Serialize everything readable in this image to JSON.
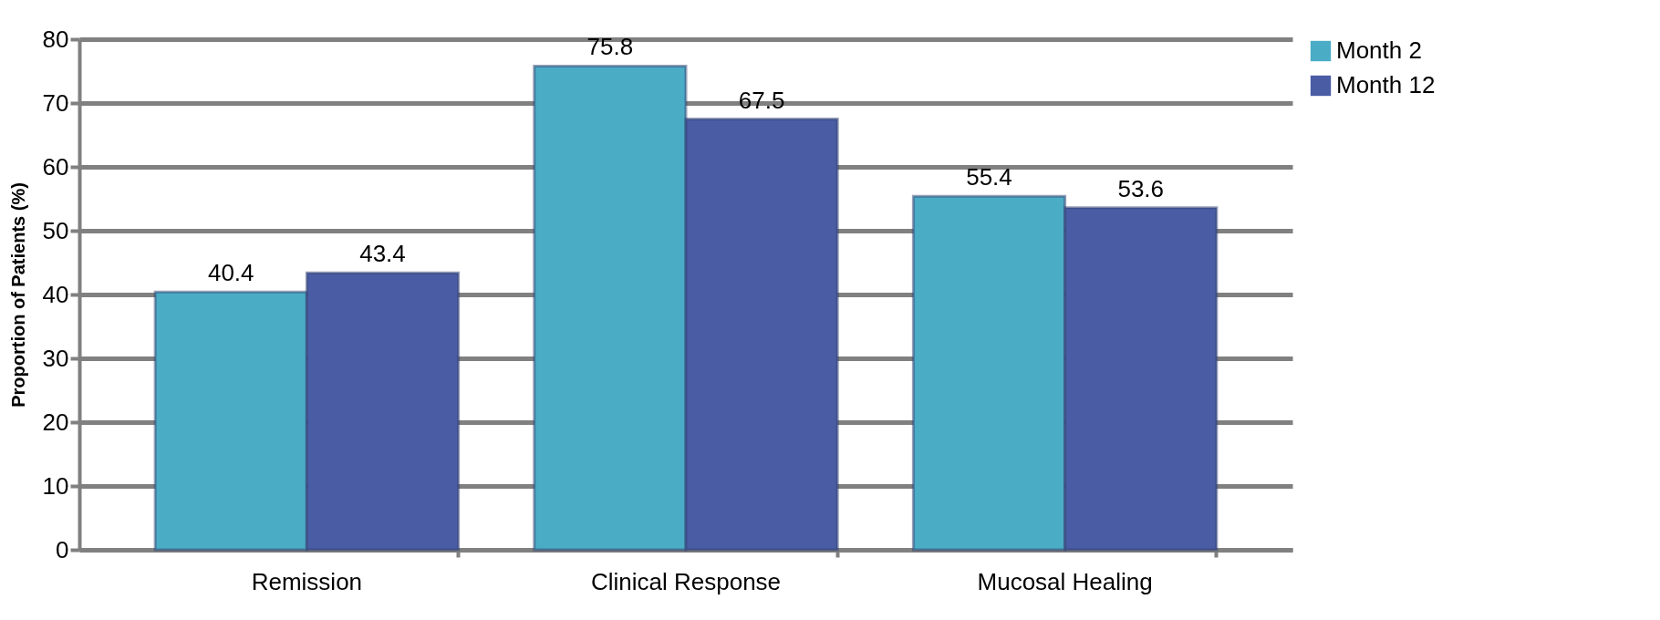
{
  "chart_data": {
    "type": "bar",
    "ylabel": "Proportion of Patients (%)",
    "categories": [
      "Remission",
      "Clinical Response",
      "Mucosal Healing"
    ],
    "series": [
      {
        "name": "Month 2",
        "color": "#4bacc6",
        "values": [
          40.4,
          75.8,
          55.4
        ]
      },
      {
        "name": "Month 12",
        "color": "#4a5ca4",
        "values": [
          43.4,
          67.5,
          53.6
        ]
      }
    ],
    "ylim": [
      0,
      80
    ],
    "yticks": [
      0,
      10,
      20,
      30,
      40,
      50,
      60,
      70,
      80
    ],
    "grid": "y",
    "legend": "right",
    "data_labels": true
  }
}
